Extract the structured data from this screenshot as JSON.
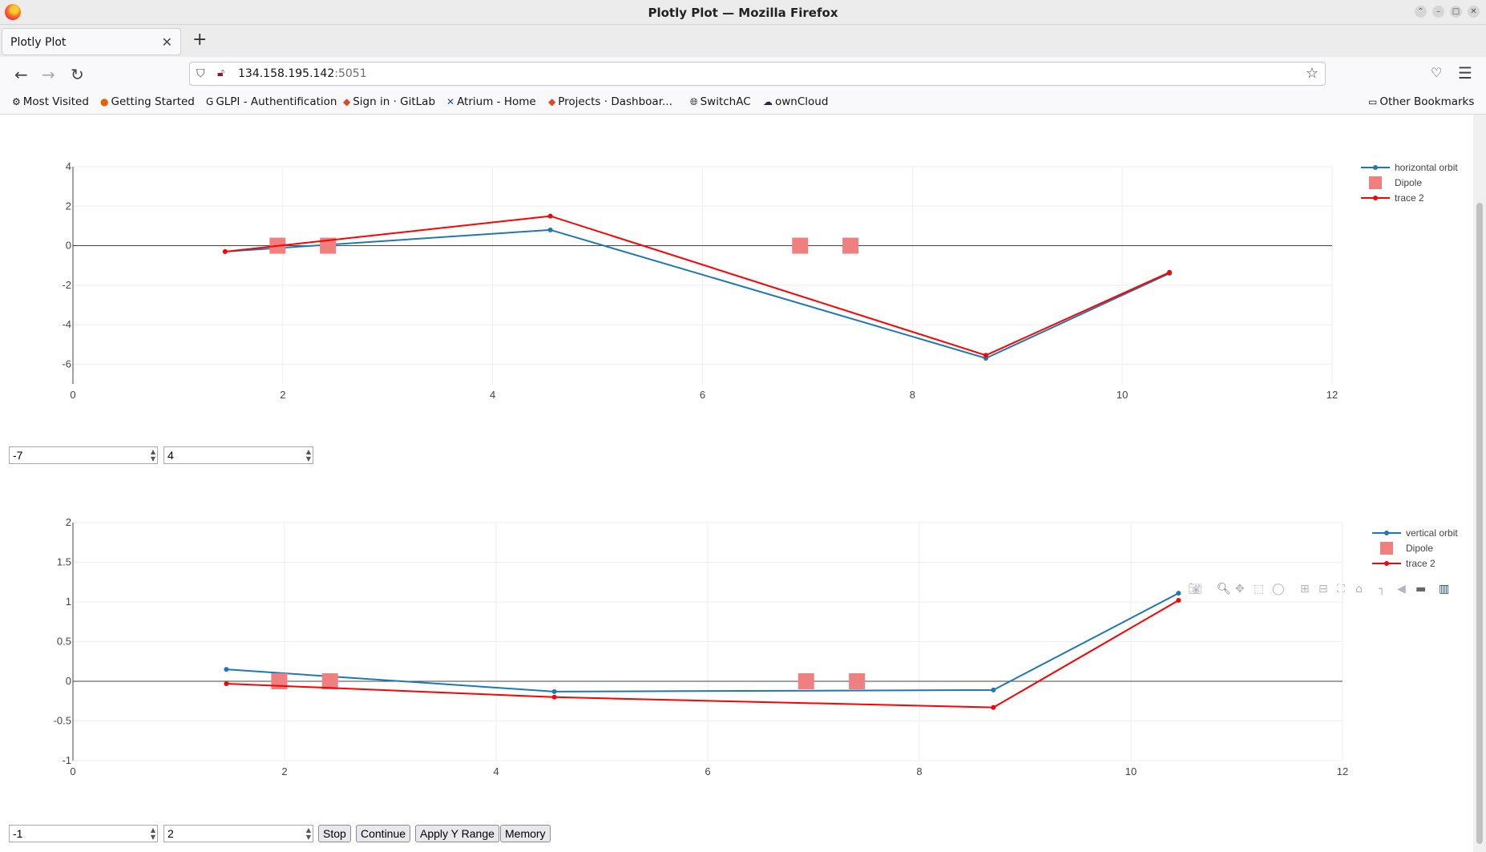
{
  "window": {
    "title": "Plotly Plot — Mozilla Firefox"
  },
  "tab": {
    "label": "Plotly Plot"
  },
  "url": {
    "host": "134.158.195.142",
    "port": ":5051"
  },
  "bookmarks": [
    {
      "label": "Most Visited",
      "icon": "gear-icon"
    },
    {
      "label": "Getting Started",
      "icon": "firefox-icon"
    },
    {
      "label": "GLPI - Authentification",
      "icon": "glpi-icon"
    },
    {
      "label": "Sign in · GitLab",
      "icon": "gitlab-icon"
    },
    {
      "label": "Atrium - Home",
      "icon": "atrium-icon"
    },
    {
      "label": "Projects · Dashboar...",
      "icon": "gitlab-icon"
    },
    {
      "label": "SwitchAC",
      "icon": "globe-icon"
    },
    {
      "label": "ownCloud",
      "icon": "owncloud-icon"
    }
  ],
  "other_bookmarks": "Other Bookmarks",
  "controls": {
    "top_min": "-7",
    "top_max": "4",
    "bottom_min": "-1",
    "bottom_max": "2",
    "stop": "Stop",
    "continue": "Continue",
    "apply": "Apply Y Range",
    "memory": "Memory"
  },
  "chart_data": [
    {
      "type": "line",
      "xlim": [
        0,
        12
      ],
      "ylim": [
        -7,
        4
      ],
      "xticks": [
        0,
        2,
        4,
        6,
        8,
        10,
        12
      ],
      "yticks": [
        -6,
        -4,
        -2,
        0,
        2,
        4
      ],
      "legend": "top-right",
      "series": [
        {
          "name": "horizontal orbit",
          "color": "#1f77b4",
          "x": [
            1.45,
            4.55,
            8.7,
            10.45
          ],
          "y": [
            -0.3,
            0.8,
            -5.7,
            -1.4
          ]
        },
        {
          "name": "Dipole",
          "color": "#f08080",
          "marker": "square",
          "x": [
            1.95,
            2.43,
            6.93,
            7.41
          ],
          "y": [
            0,
            0,
            0,
            0
          ]
        },
        {
          "name": "trace 2",
          "color": "#ff0000",
          "x": [
            1.45,
            4.55,
            8.7,
            10.45
          ],
          "y": [
            -0.3,
            1.5,
            -5.55,
            -1.35
          ]
        }
      ]
    },
    {
      "type": "line",
      "xlim": [
        0,
        12
      ],
      "ylim": [
        -1,
        2
      ],
      "xticks": [
        0,
        2,
        4,
        6,
        8,
        10,
        12
      ],
      "yticks": [
        -1,
        -0.5,
        0,
        0.5,
        1,
        1.5,
        2
      ],
      "legend": "top-right",
      "series": [
        {
          "name": "vertical orbit",
          "color": "#1f77b4",
          "x": [
            1.45,
            4.55,
            8.7,
            10.45
          ],
          "y": [
            0.15,
            -0.13,
            -0.11,
            1.11
          ]
        },
        {
          "name": "Dipole",
          "color": "#f08080",
          "marker": "square",
          "x": [
            1.95,
            2.43,
            6.93,
            7.41
          ],
          "y": [
            0,
            0,
            0,
            0
          ]
        },
        {
          "name": "trace 2",
          "color": "#ff0000",
          "x": [
            1.45,
            4.55,
            8.7,
            10.45
          ],
          "y": [
            -0.03,
            -0.2,
            -0.33,
            1.02
          ]
        }
      ]
    }
  ]
}
